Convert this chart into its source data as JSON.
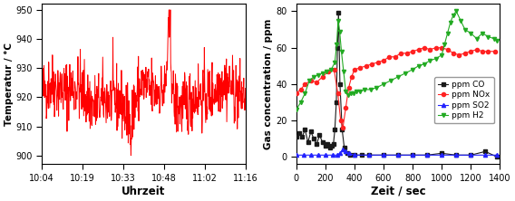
{
  "left_ylabel": "Temperatur / °C",
  "left_xlabel": "Uhrzeit",
  "left_xticks": [
    "10:04",
    "10:19",
    "10:33",
    "10:48",
    "11:02",
    "11:16"
  ],
  "left_ylim": [
    897,
    952
  ],
  "left_yticks": [
    900,
    910,
    920,
    930,
    940,
    950
  ],
  "left_color": "#ff0000",
  "right_ylabel": "Gas concentration / ppm",
  "right_xlabel": "Zeit / sec",
  "right_xlim": [
    0,
    1400
  ],
  "right_ylim": [
    -4,
    84
  ],
  "right_yticks": [
    0,
    20,
    40,
    60,
    80
  ],
  "right_xticks": [
    0,
    200,
    400,
    600,
    800,
    1000,
    1200,
    1400
  ],
  "legend_labels": [
    "ppm CO",
    "ppm NOx",
    "ppm SO2",
    "ppm H2"
  ],
  "co_color": "#1a1a1a",
  "nox_color": "#ff2222",
  "so2_color": "#2222ff",
  "h2_color": "#22aa22"
}
